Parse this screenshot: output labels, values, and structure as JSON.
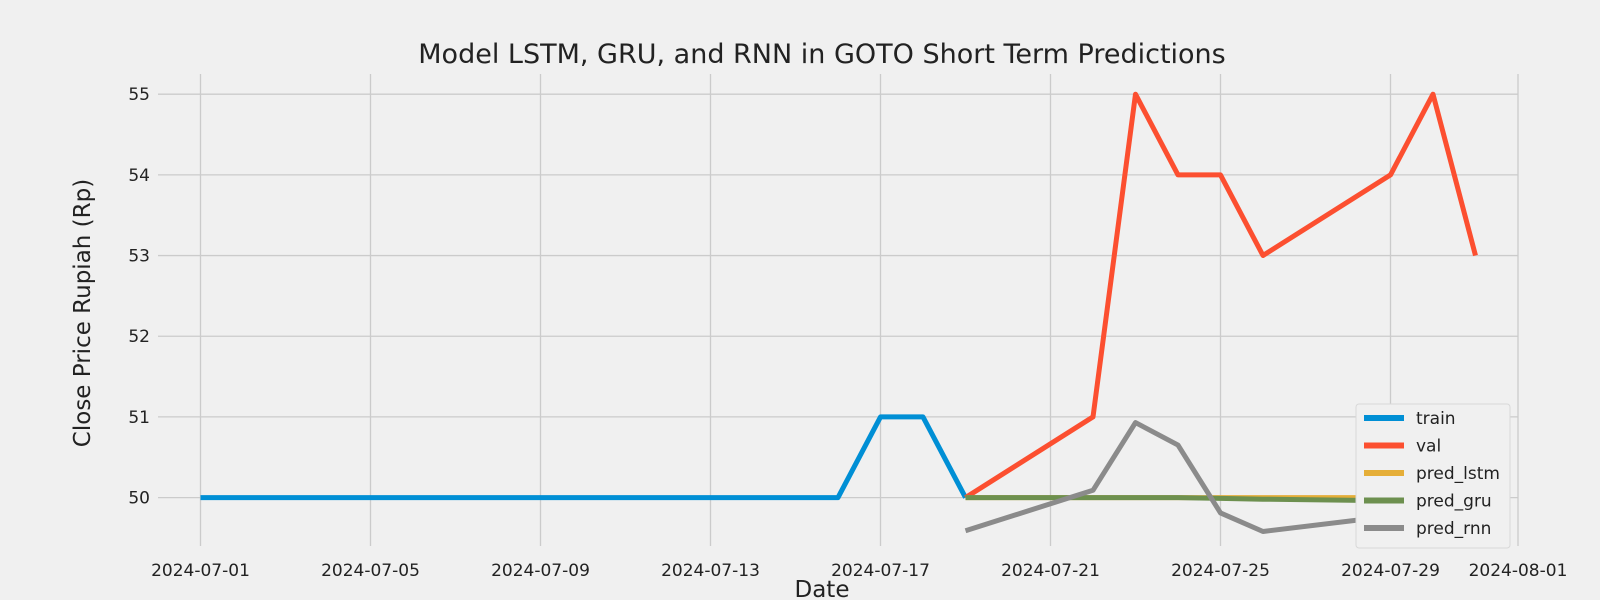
{
  "chart_data": {
    "type": "line",
    "title": "Model LSTM, GRU, and RNN in GOTO Short Term Predictions",
    "xlabel": "Date",
    "ylabel": "Close Price Rupiah (Rp)",
    "xlim": [
      "2024-06-30",
      "2024-08-01"
    ],
    "ylim": [
      49.4,
      55.25
    ],
    "x_ticks": [
      "2024-07-01",
      "2024-07-05",
      "2024-07-09",
      "2024-07-13",
      "2024-07-17",
      "2024-07-21",
      "2024-07-25",
      "2024-07-29",
      "2024-08-01"
    ],
    "y_ticks": [
      50,
      51,
      52,
      53,
      54,
      55
    ],
    "grid": true,
    "legend_position": "lower-right",
    "series": [
      {
        "name": "train",
        "color": "#008fd5",
        "x": [
          "2024-07-01",
          "2024-07-02",
          "2024-07-03",
          "2024-07-04",
          "2024-07-05",
          "2024-07-06",
          "2024-07-07",
          "2024-07-08",
          "2024-07-09",
          "2024-07-10",
          "2024-07-11",
          "2024-07-12",
          "2024-07-13",
          "2024-07-14",
          "2024-07-15",
          "2024-07-16",
          "2024-07-17",
          "2024-07-18",
          "2024-07-19"
        ],
        "values": [
          50,
          50,
          50,
          50,
          50,
          50,
          50,
          50,
          50,
          50,
          50,
          50,
          50,
          50,
          50,
          50,
          51,
          51,
          50
        ]
      },
      {
        "name": "val",
        "color": "#fc4f30",
        "x": [
          "2024-07-19",
          "2024-07-22",
          "2024-07-23",
          "2024-07-24",
          "2024-07-25",
          "2024-07-26",
          "2024-07-29",
          "2024-07-30",
          "2024-07-31"
        ],
        "values": [
          50,
          51,
          55,
          54,
          54,
          53,
          54,
          55,
          53
        ]
      },
      {
        "name": "pred_lstm",
        "color": "#e5ae38",
        "x": [
          "2024-07-19",
          "2024-07-22",
          "2024-07-23",
          "2024-07-24",
          "2024-07-25",
          "2024-07-26",
          "2024-07-29",
          "2024-07-30",
          "2024-07-31"
        ],
        "values": [
          50.0,
          50.0,
          50.0,
          50.0,
          50.0,
          50.0,
          50.0,
          50.0,
          50.0
        ]
      },
      {
        "name": "pred_gru",
        "color": "#6d904f",
        "x": [
          "2024-07-19",
          "2024-07-22",
          "2024-07-23",
          "2024-07-24",
          "2024-07-25",
          "2024-07-26",
          "2024-07-29",
          "2024-07-30",
          "2024-07-31"
        ],
        "values": [
          50.0,
          50.0,
          50.0,
          50.0,
          49.99,
          49.98,
          49.96,
          49.96,
          49.96
        ]
      },
      {
        "name": "pred_rnn",
        "color": "#8b8b8b",
        "x": [
          "2024-07-19",
          "2024-07-22",
          "2024-07-23",
          "2024-07-24",
          "2024-07-25",
          "2024-07-26",
          "2024-07-29",
          "2024-07-30",
          "2024-07-31"
        ],
        "values": [
          49.59,
          50.09,
          50.93,
          50.65,
          49.81,
          49.58,
          49.77,
          50.11,
          50.27
        ]
      }
    ]
  }
}
